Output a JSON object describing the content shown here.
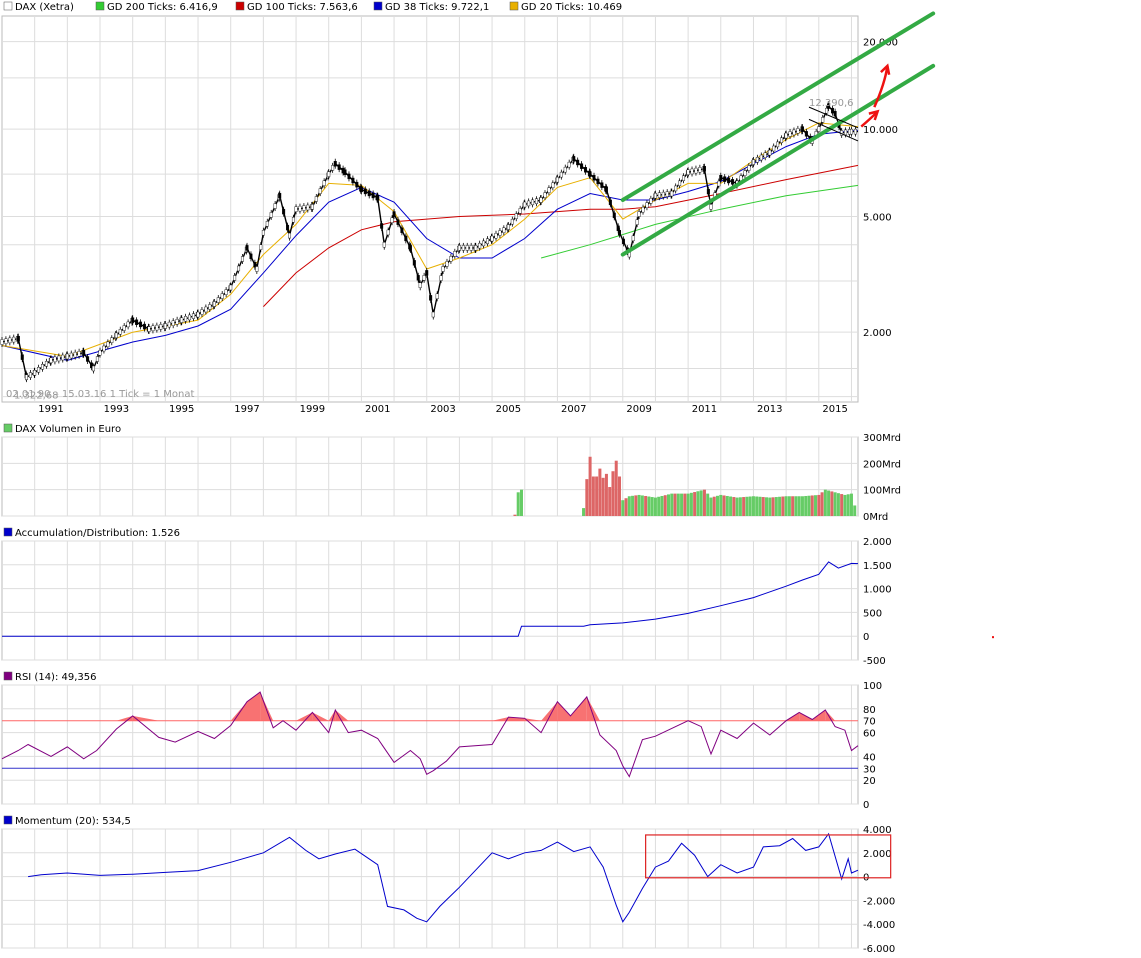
{
  "chart_data": [
    {
      "type": "line",
      "panel": "price",
      "scale": "log",
      "legend": [
        {
          "label": "DAX (Xetra)",
          "color": "#ffffff"
        },
        {
          "label": "GD 200 Ticks: 6.416,9",
          "color": "#33cc33"
        },
        {
          "label": "GD 100 Ticks: 7.563,6",
          "color": "#cc0000"
        },
        {
          "label": "GD 38 Ticks: 9.722,1",
          "color": "#0000cc"
        },
        {
          "label": "GD 20 Ticks: 10.469",
          "color": "#e8b000"
        }
      ],
      "y_ticks": [
        {
          "v": 20000,
          "label": "20.000"
        },
        {
          "v": 10000,
          "label": "10.000"
        },
        {
          "v": 5000,
          "label": "5.000"
        },
        {
          "v": 2000,
          "label": "2.000"
        }
      ],
      "ylim": [
        1150,
        24500
      ],
      "x_ticks": [
        1991,
        1993,
        1995,
        1997,
        1999,
        2001,
        2003,
        2005,
        2007,
        2009,
        2011,
        2013,
        2015
      ],
      "xlim": [
        1990.0,
        2016.2
      ],
      "annotations": {
        "high": "12.390,6",
        "low": "1.322,68",
        "range": "02.01.90 – 15.03.16   1 Tick = 1 Monat"
      },
      "series": [
        {
          "name": "DAX (Xetra)",
          "color": "#000000",
          "x": [
            1990.0,
            1990.5,
            1990.75,
            1991.0,
            1991.5,
            1992.0,
            1992.5,
            1992.8,
            1993.0,
            1993.5,
            1994.0,
            1994.5,
            1995.0,
            1995.5,
            1996.0,
            1996.5,
            1997.0,
            1997.5,
            1997.8,
            1998.0,
            1998.5,
            1998.8,
            1999.0,
            1999.5,
            2000.0,
            2000.2,
            2000.5,
            2001.0,
            2001.5,
            2001.7,
            2002.0,
            2002.5,
            2002.8,
            2003.0,
            2003.2,
            2003.5,
            2004.0,
            2004.5,
            2005.0,
            2005.5,
            2006.0,
            2006.5,
            2007.0,
            2007.5,
            2008.0,
            2008.5,
            2008.9,
            2009.2,
            2009.5,
            2010.0,
            2010.5,
            2011.0,
            2011.5,
            2011.7,
            2012.0,
            2012.5,
            2013.0,
            2013.5,
            2014.0,
            2014.5,
            2014.8,
            2015.0,
            2015.3,
            2015.5,
            2015.7,
            2016.0,
            2016.2
          ],
          "values": [
            1850,
            1900,
            1400,
            1450,
            1600,
            1650,
            1700,
            1500,
            1700,
            1950,
            2200,
            2050,
            2100,
            2200,
            2300,
            2500,
            2850,
            3900,
            3300,
            4400,
            5900,
            4300,
            5300,
            5400,
            7000,
            7600,
            7100,
            6200,
            5800,
            4000,
            5100,
            3900,
            2900,
            3200,
            2300,
            3300,
            3900,
            3900,
            4200,
            4600,
            5500,
            5700,
            6700,
            7900,
            7000,
            6200,
            4400,
            3700,
            5100,
            5900,
            6000,
            7100,
            7300,
            5400,
            6800,
            6500,
            7700,
            8300,
            9500,
            10000,
            9100,
            10000,
            12000,
            11300,
            9700,
            9800,
            9800
          ]
        },
        {
          "name": "GD 200 Ticks",
          "color": "#33cc33",
          "x": [
            2006.5,
            2008.0,
            2010.0,
            2012.0,
            2014.0,
            2016.2
          ],
          "values": [
            3600,
            4000,
            4700,
            5300,
            5900,
            6400
          ]
        },
        {
          "name": "GD 100 Ticks",
          "color": "#cc0000",
          "x": [
            1998.0,
            1999.0,
            2000.0,
            2001.0,
            2002.0,
            2003.0,
            2004.0,
            2006.0,
            2008.0,
            2009.0,
            2010.0,
            2012.0,
            2014.0,
            2016.2
          ],
          "values": [
            2450,
            3200,
            3900,
            4500,
            4800,
            4900,
            5000,
            5100,
            5300,
            5300,
            5400,
            6000,
            6700,
            7500
          ]
        },
        {
          "name": "GD 38 Ticks",
          "color": "#0000cc",
          "x": [
            1990.0,
            1992.0,
            1994.0,
            1995.0,
            1996.0,
            1997.0,
            1998.0,
            1999.0,
            2000.0,
            2001.0,
            2002.0,
            2003.0,
            2004.0,
            2005.0,
            2006.0,
            2007.0,
            2008.0,
            2009.0,
            2010.0,
            2011.0,
            2012.0,
            2013.0,
            2014.0,
            2015.0,
            2016.2
          ],
          "values": [
            1800,
            1600,
            1850,
            1950,
            2100,
            2400,
            3200,
            4300,
            5600,
            6300,
            5600,
            4200,
            3600,
            3600,
            4200,
            5300,
            6000,
            5700,
            5700,
            6100,
            6600,
            7600,
            8700,
            9600,
            9900
          ]
        },
        {
          "name": "GD 20 Ticks",
          "color": "#e8b000",
          "x": [
            1990.0,
            1992.0,
            1994.0,
            1996.0,
            1997.0,
            1998.0,
            1999.0,
            2000.0,
            2001.0,
            2002.0,
            2003.0,
            2004.0,
            2005.0,
            2006.0,
            2007.0,
            2008.0,
            2009.0,
            2010.0,
            2011.0,
            2012.0,
            2013.0,
            2014.0,
            2015.0,
            2016.2
          ],
          "values": [
            1800,
            1650,
            2000,
            2200,
            2700,
            3700,
            4700,
            6500,
            6400,
            5200,
            3300,
            3600,
            4000,
            4900,
            6300,
            6800,
            4900,
            5700,
            6500,
            6500,
            7800,
            9200,
            10500,
            10200
          ]
        }
      ]
    },
    {
      "type": "bar",
      "panel": "volume",
      "title": "DAX Volumen in Euro",
      "y_ticks": [
        {
          "v": 0,
          "label": "0Mrd"
        },
        {
          "v": 100,
          "label": "100Mrd"
        },
        {
          "v": 200,
          "label": "200Mrd"
        },
        {
          "v": 300,
          "label": "300Mrd"
        }
      ],
      "ylim": [
        0,
        300
      ],
      "x": [
        2005.7,
        2005.8,
        2005.9,
        2007.8,
        2007.9,
        2008.0,
        2008.1,
        2008.2,
        2008.3,
        2008.4,
        2008.5,
        2008.6,
        2008.7,
        2008.8,
        2008.9,
        2009.0,
        2009.2,
        2009.5,
        2010.0,
        2010.5,
        2011.0,
        2011.5,
        2011.7,
        2012.0,
        2012.5,
        2013.0,
        2013.5,
        2014.0,
        2014.5,
        2015.0,
        2015.2,
        2015.5,
        2015.8,
        2016.0,
        2016.1
      ],
      "values": [
        5,
        90,
        100,
        30,
        140,
        225,
        150,
        150,
        180,
        145,
        160,
        110,
        170,
        210,
        150,
        60,
        75,
        80,
        70,
        85,
        85,
        100,
        70,
        80,
        70,
        75,
        70,
        75,
        75,
        80,
        100,
        90,
        80,
        85,
        40
      ],
      "up": [
        false,
        true,
        true,
        true,
        false,
        false,
        false,
        false,
        false,
        false,
        false,
        false,
        false,
        false,
        false,
        true,
        true,
        true,
        true,
        true,
        true,
        false,
        true,
        true,
        true,
        true,
        true,
        true,
        true,
        false,
        true,
        true,
        true,
        true,
        true
      ]
    },
    {
      "type": "line",
      "panel": "ad",
      "title": "Accumulation/Distribution: 1.526",
      "color": "#0000cc",
      "y_ticks": [
        {
          "v": -500,
          "label": "-500"
        },
        {
          "v": 0,
          "label": "0"
        },
        {
          "v": 500,
          "label": "500"
        },
        {
          "v": 1000,
          "label": "1.000"
        },
        {
          "v": 1500,
          "label": "1.500"
        },
        {
          "v": 2000,
          "label": "2.000"
        }
      ],
      "ylim": [
        -500,
        2000
      ],
      "x": [
        1990.0,
        2005.8,
        2005.9,
        2007.8,
        2008.0,
        2009.0,
        2010.0,
        2011.0,
        2012.0,
        2013.0,
        2014.0,
        2014.5,
        2015.0,
        2015.3,
        2015.6,
        2016.0,
        2016.2
      ],
      "values": [
        0,
        0,
        210,
        210,
        240,
        280,
        360,
        480,
        640,
        810,
        1050,
        1180,
        1300,
        1560,
        1430,
        1530,
        1526
      ]
    },
    {
      "type": "line",
      "panel": "rsi",
      "title": "RSI (14): 49,356",
      "color": "#800080",
      "y_ticks": [
        {
          "v": 0,
          "label": "0"
        },
        {
          "v": 20,
          "label": "20"
        },
        {
          "v": 30,
          "label": "30"
        },
        {
          "v": 40,
          "label": "40"
        },
        {
          "v": 60,
          "label": "60"
        },
        {
          "v": 70,
          "label": "70"
        },
        {
          "v": 80,
          "label": "80"
        },
        {
          "v": 100,
          "label": "100"
        }
      ],
      "ylim": [
        0,
        100
      ],
      "levels": [
        {
          "v": 70,
          "color": "#ff6666"
        },
        {
          "v": 30,
          "color": "#3333cc"
        }
      ],
      "x": [
        1990.0,
        1990.5,
        1990.8,
        1991.5,
        1992.0,
        1992.5,
        1992.9,
        1993.5,
        1994.0,
        1994.8,
        1995.3,
        1996.0,
        1996.5,
        1997.0,
        1997.5,
        1997.9,
        1998.3,
        1998.6,
        1999.0,
        1999.5,
        2000.0,
        2000.2,
        2000.6,
        2001.0,
        2001.5,
        2002.0,
        2002.5,
        2002.8,
        2003.0,
        2003.2,
        2003.6,
        2004.0,
        2005.0,
        2005.5,
        2006.0,
        2006.5,
        2007.0,
        2007.4,
        2007.9,
        2008.3,
        2008.8,
        2009.0,
        2009.2,
        2009.6,
        2010.0,
        2011.0,
        2011.4,
        2011.7,
        2012.0,
        2012.5,
        2013.0,
        2013.5,
        2014.0,
        2014.4,
        2014.8,
        2015.2,
        2015.5,
        2015.8,
        2016.0,
        2016.2
      ],
      "values": [
        38,
        45,
        50,
        40,
        48,
        38,
        45,
        63,
        74,
        56,
        52,
        61,
        55,
        66,
        86,
        94,
        64,
        70,
        62,
        77,
        60,
        79,
        60,
        62,
        55,
        35,
        45,
        38,
        25,
        28,
        36,
        48,
        50,
        73,
        72,
        60,
        86,
        74,
        90,
        58,
        45,
        32,
        23,
        54,
        57,
        70,
        65,
        42,
        62,
        55,
        68,
        58,
        70,
        77,
        71,
        79,
        65,
        62,
        45,
        49
      ]
    },
    {
      "type": "line",
      "panel": "momentum",
      "title": "Momentum (20): 534,5",
      "color": "#0000cc",
      "y_ticks": [
        {
          "v": -6000,
          "label": "-6.000"
        },
        {
          "v": -4000,
          "label": "-4.000"
        },
        {
          "v": -2000,
          "label": "-2.000"
        },
        {
          "v": 0,
          "label": "0"
        },
        {
          "v": 2000,
          "label": "2.000"
        },
        {
          "v": 4000,
          "label": "4.000"
        }
      ],
      "ylim": [
        -6000,
        4000
      ],
      "x": [
        1990.8,
        1991.2,
        1992.0,
        1993.0,
        1994.0,
        1995.0,
        1996.0,
        1997.0,
        1998.0,
        1998.8,
        1999.3,
        1999.7,
        2000.2,
        2000.8,
        2001.5,
        2001.8,
        2002.3,
        2002.7,
        2003.0,
        2003.4,
        2004.0,
        2005.0,
        2005.5,
        2006.0,
        2006.5,
        2007.0,
        2007.5,
        2008.0,
        2008.4,
        2008.8,
        2009.0,
        2009.2,
        2009.6,
        2010.0,
        2010.4,
        2010.8,
        2011.2,
        2011.6,
        2012.0,
        2012.5,
        2013.0,
        2013.3,
        2013.8,
        2014.2,
        2014.6,
        2015.0,
        2015.3,
        2015.7,
        2015.9,
        2016.0,
        2016.2
      ],
      "values": [
        0,
        150,
        300,
        100,
        200,
        350,
        500,
        1200,
        2000,
        3300,
        2200,
        1500,
        1900,
        2300,
        1000,
        -2500,
        -2800,
        -3500,
        -3800,
        -2500,
        -900,
        2000,
        1500,
        2000,
        2200,
        2900,
        2100,
        2500,
        800,
        -2400,
        -3800,
        -3000,
        -1000,
        800,
        1300,
        2800,
        1800,
        0,
        1000,
        300,
        800,
        2500,
        2600,
        3200,
        2200,
        2500,
        3600,
        -200,
        1500,
        300,
        534
      ]
    },
    {
      "type": "annotation",
      "panel": "overlays",
      "channel_color": "#33aa44",
      "arrow_color": "#ee1111",
      "channel": [
        {
          "x1": 2009.0,
          "v1": 3700,
          "x2": 2018.5,
          "v2": 16500
        },
        {
          "x1": 2009.0,
          "v1": 5700,
          "x2": 2018.5,
          "v2": 25000
        }
      ],
      "thin_lines": [
        {
          "x1": 2014.7,
          "v1": 10800,
          "x2": 2016.2,
          "v2": 9100
        },
        {
          "x1": 2014.7,
          "v1": 11900,
          "x2": 2016.2,
          "v2": 10100
        }
      ],
      "arrows": [
        {
          "x1": 2016.3,
          "v1": 10200,
          "x2": 2016.8,
          "v2": 11500
        },
        {
          "x1": 2016.7,
          "v1": 11900,
          "x2": 2017.1,
          "v2": 16500
        }
      ],
      "momentum_box": {
        "x1": 2009.7,
        "x2": 2017.2,
        "v1": -100,
        "v2": 3500
      },
      "red_dot": {
        "x": 2020.2,
        "v": -20
      }
    }
  ]
}
